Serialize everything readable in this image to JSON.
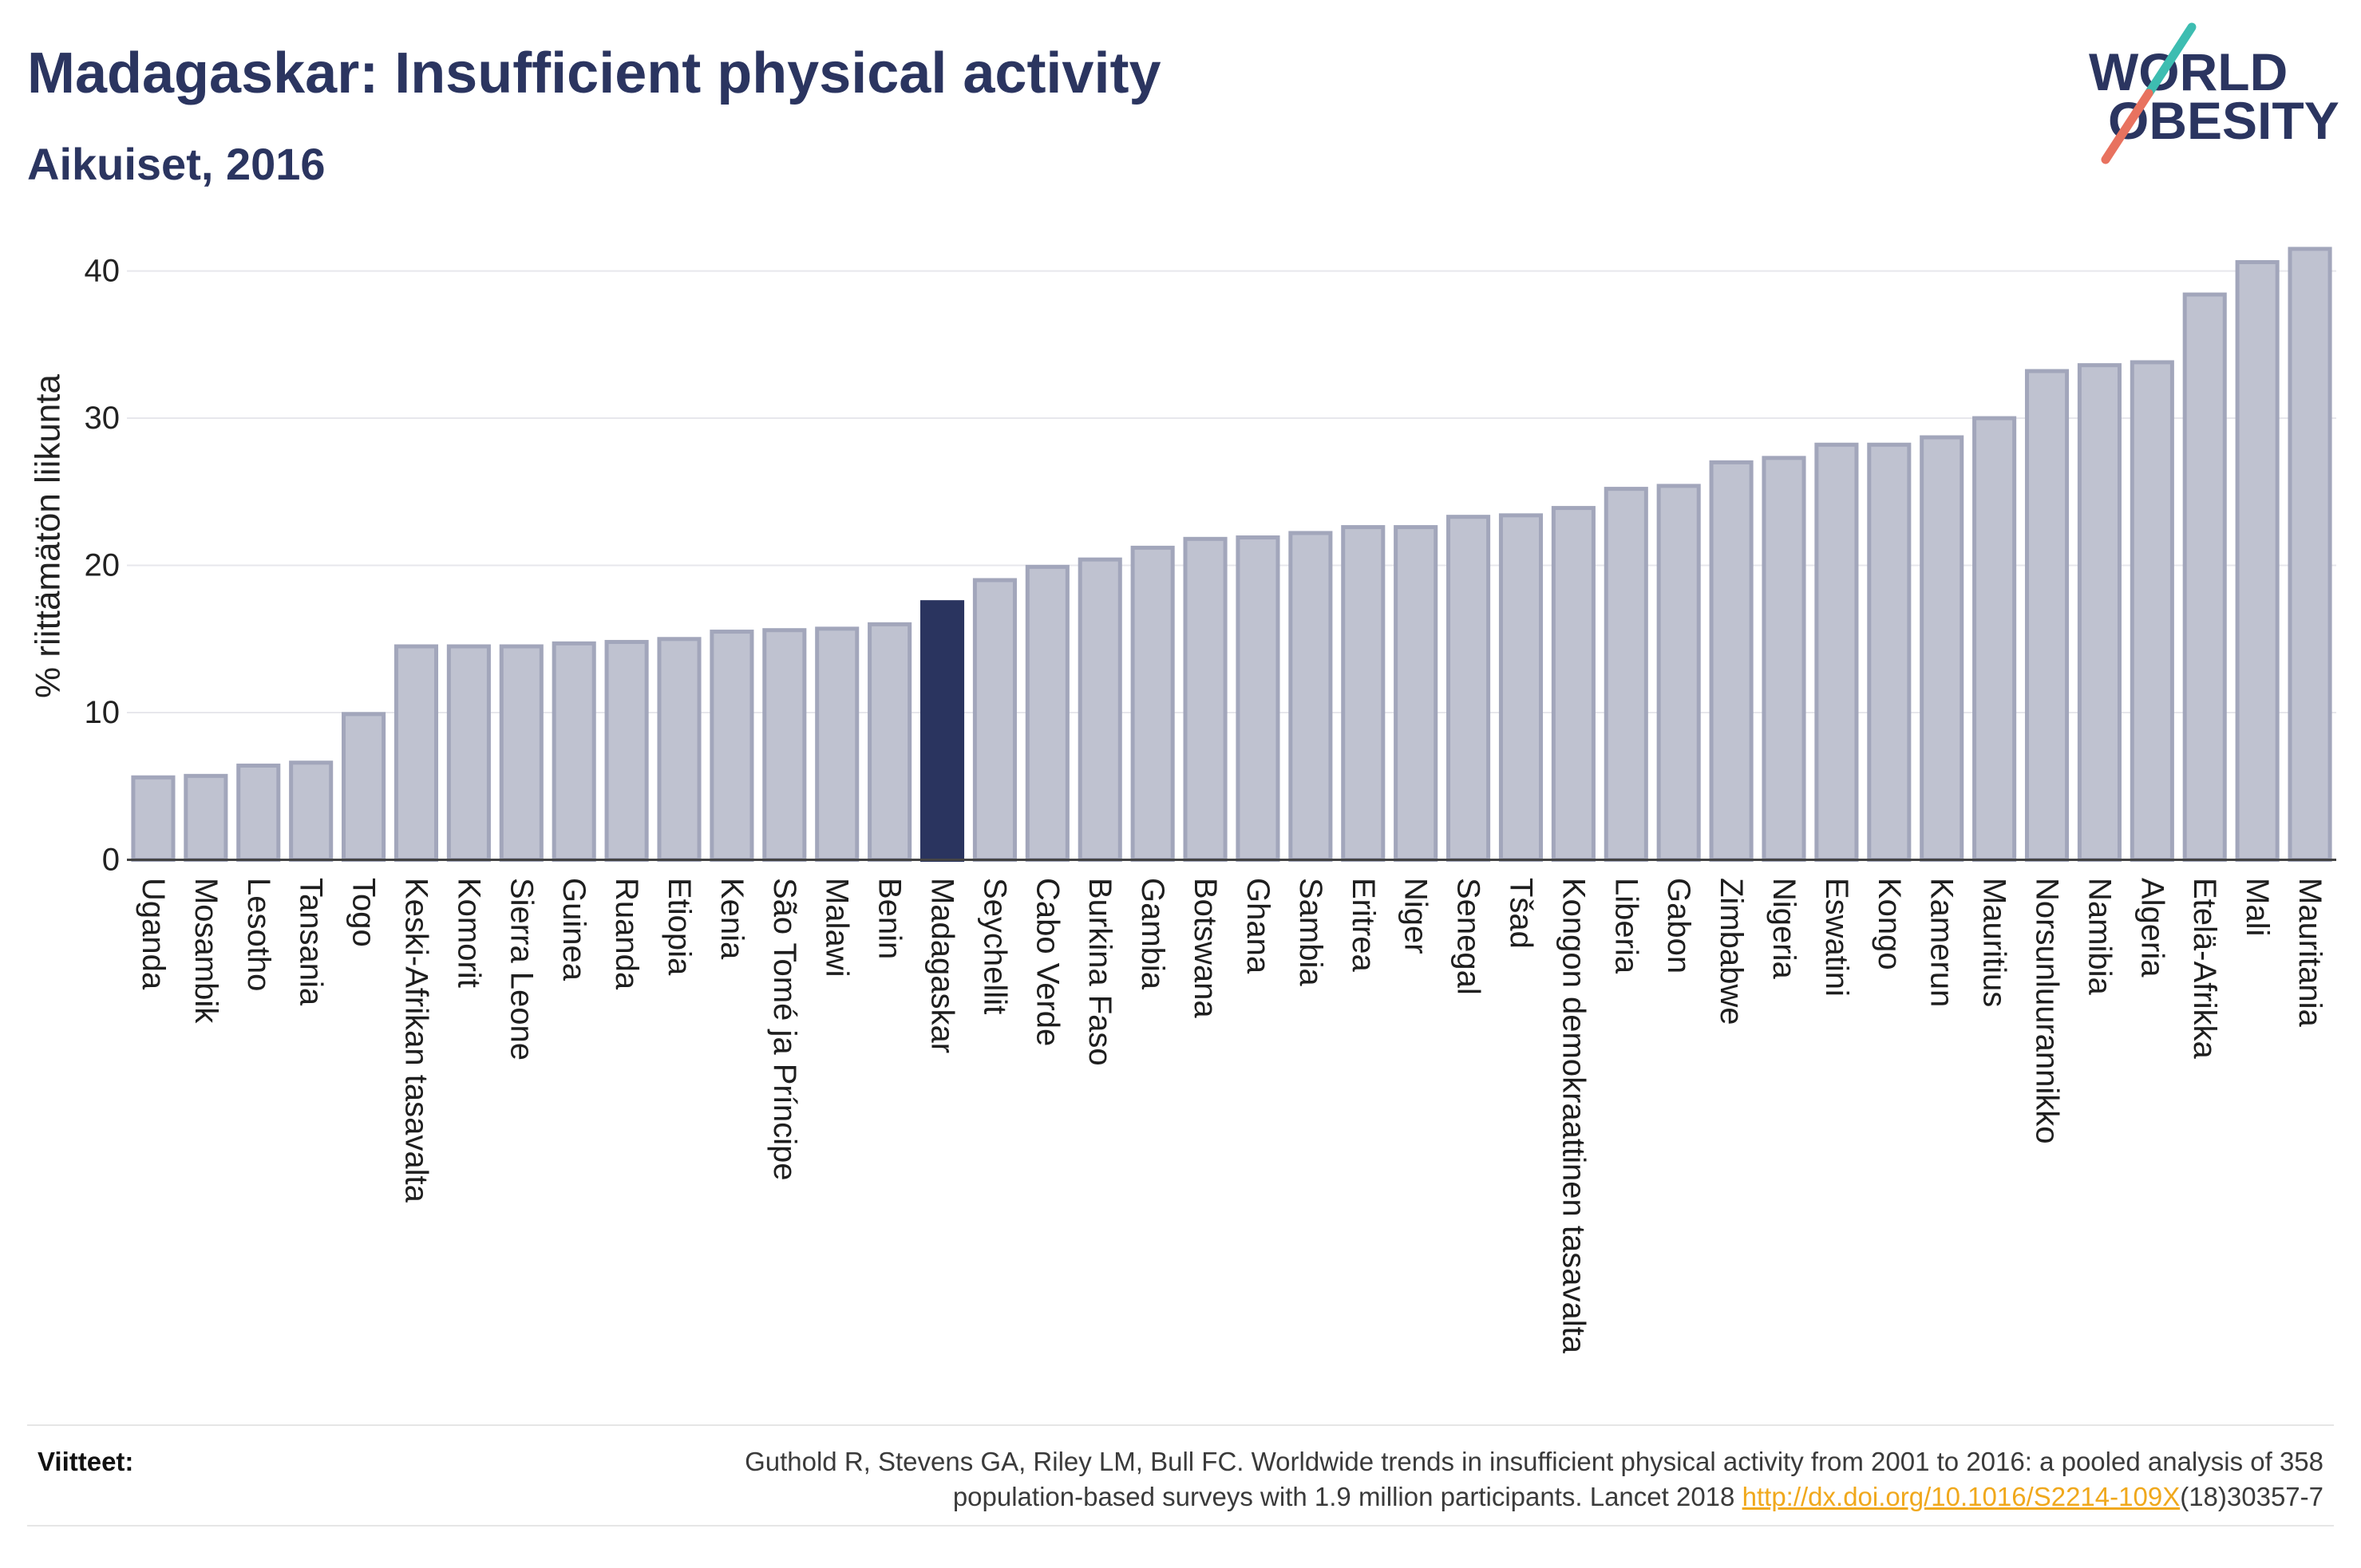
{
  "theme": {
    "title_color": "#2b3560",
    "axis_text_color": "#222222"
  },
  "logo": {
    "line1": "WORLD",
    "line2": "OBESITY",
    "colors": {
      "text": "#2b3560",
      "slash_top": "#3dbdb1",
      "slash_bottom": "#e8725f"
    }
  },
  "chart_data": {
    "type": "bar",
    "title": "Madagaskar: Insufficient physical activity",
    "subtitle": "Aikuiset, 2016",
    "ylabel": "% riittämätön liikunta",
    "ylim": [
      0,
      43.5
    ],
    "yticks": [
      0,
      10,
      20,
      30,
      40
    ],
    "grid": true,
    "highlight": "Madagaskar",
    "colors": {
      "bar": "#bfc2d0",
      "bar_border": "#a2a6bb",
      "highlight": "#2a345f",
      "gridline": "#e7e7ec",
      "zero_line": "#444444"
    },
    "categories": [
      "Uganda",
      "Mosambik",
      "Lesotho",
      "Tansania",
      "Togo",
      "Keski-Afrikan tasavalta",
      "Komorit",
      "Sierra Leone",
      "Guinea",
      "Ruanda",
      "Etiopia",
      "Kenia",
      "São Tomé ja Príncipe",
      "Malawi",
      "Benin",
      "Madagaskar",
      "Seychellit",
      "Cabo Verde",
      "Burkina Faso",
      "Gambia",
      "Botswana",
      "Ghana",
      "Sambia",
      "Eritrea",
      "Niger",
      "Senegal",
      "Tšad",
      "Kongon demokraattinen tasavalta",
      "Liberia",
      "Gabon",
      "Zimbabwe",
      "Nigeria",
      "Eswatini",
      "Kongo",
      "Kamerun",
      "Mauritius",
      "Norsunluurannikko",
      "Namibia",
      "Algeria",
      "Etelä-Afrikka",
      "Mali",
      "Mauritania"
    ],
    "values": [
      5.6,
      5.7,
      6.4,
      6.6,
      9.9,
      14.5,
      14.5,
      14.5,
      14.7,
      14.8,
      15.0,
      15.5,
      15.6,
      15.7,
      16.0,
      17.5,
      19.0,
      19.9,
      20.4,
      21.2,
      21.8,
      21.9,
      22.2,
      22.6,
      22.6,
      23.3,
      23.4,
      23.9,
      25.2,
      25.4,
      27.0,
      27.3,
      28.2,
      28.2,
      28.7,
      30.0,
      33.2,
      33.6,
      33.8,
      38.4,
      40.6,
      41.5
    ]
  },
  "footer": {
    "label": "Viitteet:",
    "reference_line1": "Guthold R, Stevens GA, Riley LM, Bull FC. Worldwide trends in insufficient physical activity from 2001 to 2016: a pooled analysis of 358",
    "reference_line2": "population-based surveys with 1.9 million participants. Lancet 2018",
    "link_text": "http://dx.doi.org/10.1016/S2214-109X",
    "reference_suffix": "(18)30357-7",
    "link_color": "#f0a81c"
  }
}
